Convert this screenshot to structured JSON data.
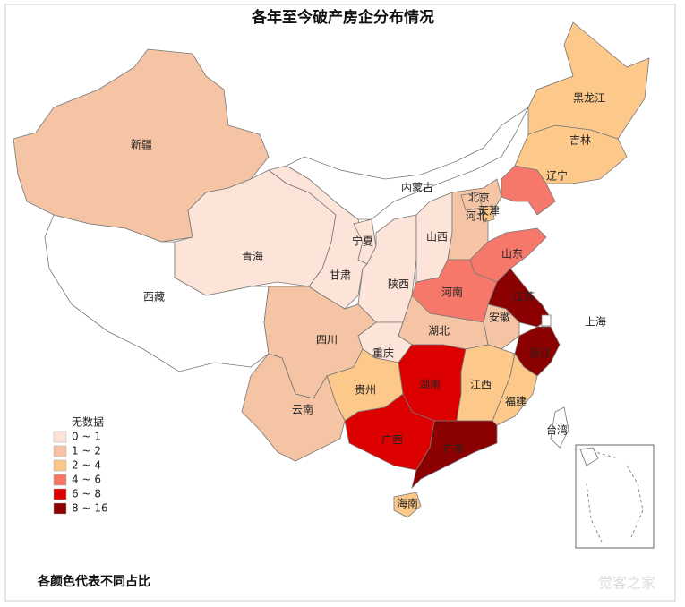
{
  "title": "各年至今破产房企分布情况",
  "legend": [
    {
      "label": "无数据",
      "color": "#ffffff"
    },
    {
      "label": "0 ~ 1",
      "color": "#fde4d8"
    },
    {
      "label": "1 ~ 2",
      "color": "#f5c4a4"
    },
    {
      "label": "2 ~ 4",
      "color": "#fcc98b"
    },
    {
      "label": "4 ~ 6",
      "color": "#f6786b"
    },
    {
      "label": "6 ~ 8",
      "color": "#dc0000"
    },
    {
      "label": "8 ~ 16",
      "color": "#8b0000"
    }
  ],
  "provinces": [
    {
      "name": "新疆",
      "color": "#f5c4a4"
    },
    {
      "name": "西藏",
      "color": "#ffffff"
    },
    {
      "name": "青海",
      "color": "#fde4d8"
    },
    {
      "name": "甘肃",
      "color": "#fde4d8"
    },
    {
      "name": "宁夏",
      "color": "#fde4d8"
    },
    {
      "name": "内蒙古",
      "color": "#ffffff"
    },
    {
      "name": "陕西",
      "color": "#fde4d8"
    },
    {
      "name": "山西",
      "color": "#fde4d8"
    },
    {
      "name": "河北",
      "color": "#f5c4a4"
    },
    {
      "name": "北京",
      "color": "#f5c4a4"
    },
    {
      "name": "天津",
      "color": "#fcc98b"
    },
    {
      "name": "辽宁",
      "color": "#f6786b"
    },
    {
      "name": "吉林",
      "color": "#fcc98b"
    },
    {
      "name": "黑龙江",
      "color": "#fcc98b"
    },
    {
      "name": "山东",
      "color": "#f6786b"
    },
    {
      "name": "河南",
      "color": "#f6786b"
    },
    {
      "name": "江苏",
      "color": "#8b0000"
    },
    {
      "name": "安徽",
      "color": "#f5c4a4"
    },
    {
      "name": "上海",
      "color": "#ffffff"
    },
    {
      "name": "浙江",
      "color": "#8b0000"
    },
    {
      "name": "湖北",
      "color": "#f5c4a4"
    },
    {
      "name": "重庆",
      "color": "#fde4d8"
    },
    {
      "name": "四川",
      "color": "#f5c4a4"
    },
    {
      "name": "贵州",
      "color": "#fcc98b"
    },
    {
      "name": "云南",
      "color": "#f5c4a4"
    },
    {
      "name": "湖南",
      "color": "#dc0000"
    },
    {
      "name": "江西",
      "color": "#fcc98b"
    },
    {
      "name": "福建",
      "color": "#fcc98b"
    },
    {
      "name": "广西",
      "color": "#dc0000"
    },
    {
      "name": "广东",
      "color": "#8b0000"
    },
    {
      "name": "海南",
      "color": "#fcc98b"
    },
    {
      "name": "台湾",
      "color": "#ffffff"
    }
  ],
  "footnote": "各颜色代表不同占比",
  "watermark": "觉客之家"
}
